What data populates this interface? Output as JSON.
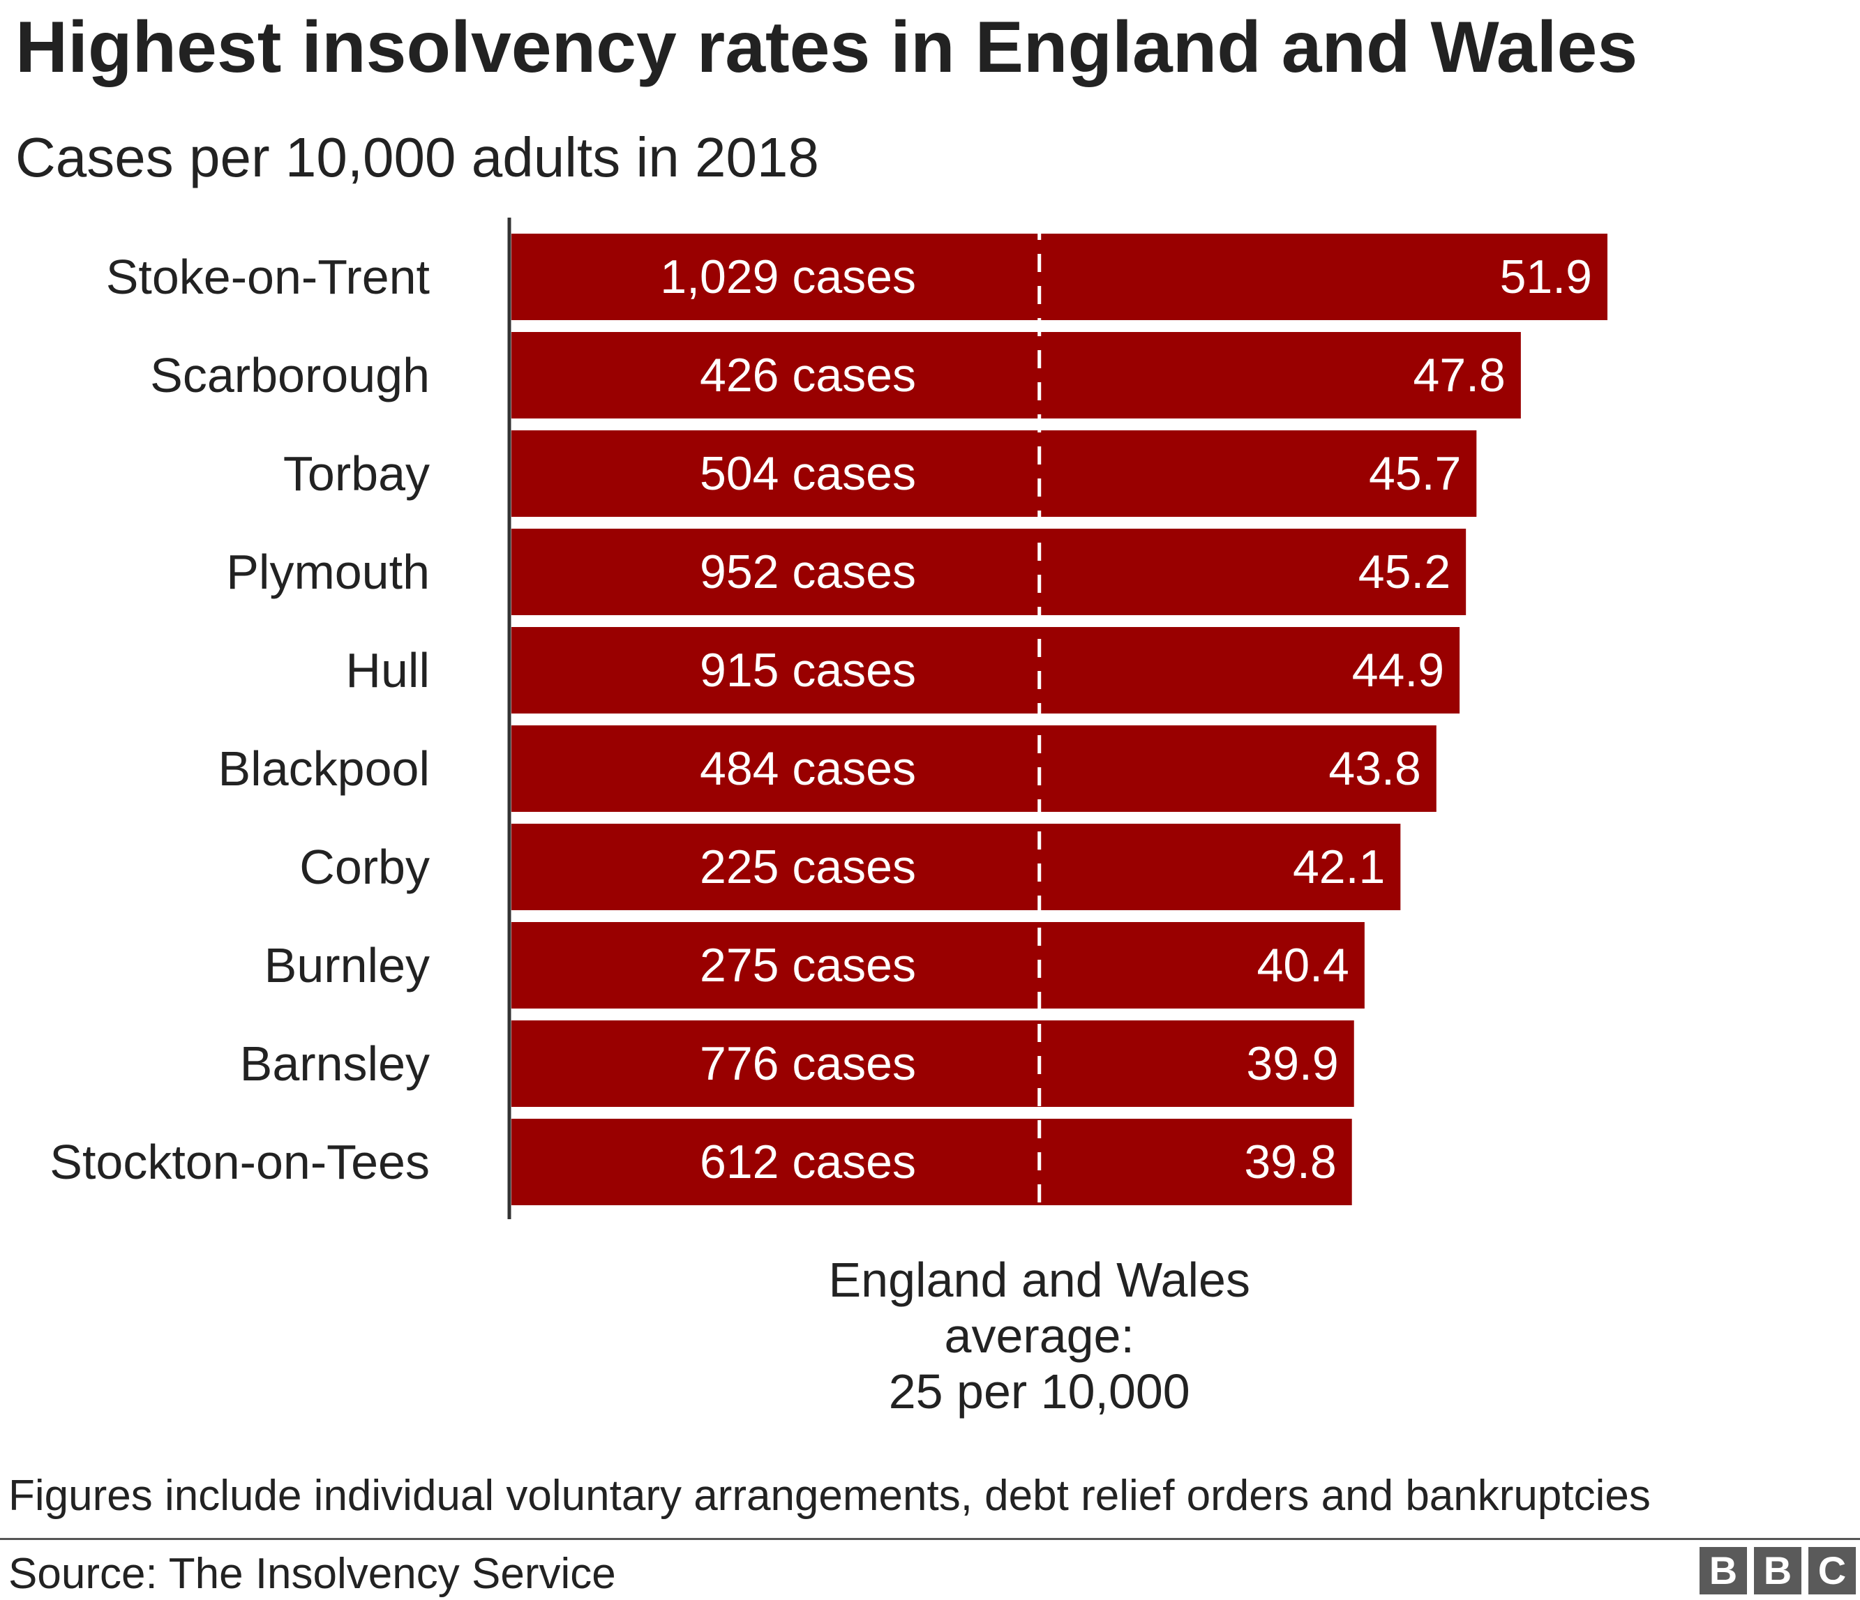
{
  "chart_data": {
    "type": "bar",
    "orientation": "horizontal",
    "title": "Highest insolvency rates in England and Wales",
    "subtitle": "Cases per 10,000 adults in 2018",
    "categories": [
      "Stoke-on-Trent",
      "Scarborough",
      "Torbay",
      "Plymouth",
      "Hull",
      "Blackpool",
      "Corby",
      "Burnley",
      "Barnsley",
      "Stockton-on-Tees"
    ],
    "values": [
      51.9,
      47.8,
      45.7,
      45.2,
      44.9,
      43.8,
      42.1,
      40.4,
      39.9,
      39.8
    ],
    "value_labels": [
      "51.9",
      "47.8",
      "45.7",
      "45.2",
      "44.9",
      "43.8",
      "42.1",
      "40.4",
      "39.9",
      "39.8"
    ],
    "case_labels": [
      "1,029 cases",
      "426 cases",
      "504 cases",
      "952 cases",
      "915 cases",
      "484 cases",
      "225 cases",
      "275 cases",
      "776 cases",
      "612 cases"
    ],
    "xlim": [
      0,
      52
    ],
    "reference_line": {
      "value": 25,
      "label_lines": [
        "England and Wales",
        "average:",
        "25 per 10,000"
      ]
    },
    "bar_color": "#990000",
    "grid": false
  },
  "footnote": "Figures include individual voluntary arrangements, debt relief orders and bankruptcies",
  "source": "Source: The Insolvency Service",
  "logo": {
    "letters": [
      "B",
      "B",
      "C"
    ],
    "color": "#5a5a5a"
  }
}
